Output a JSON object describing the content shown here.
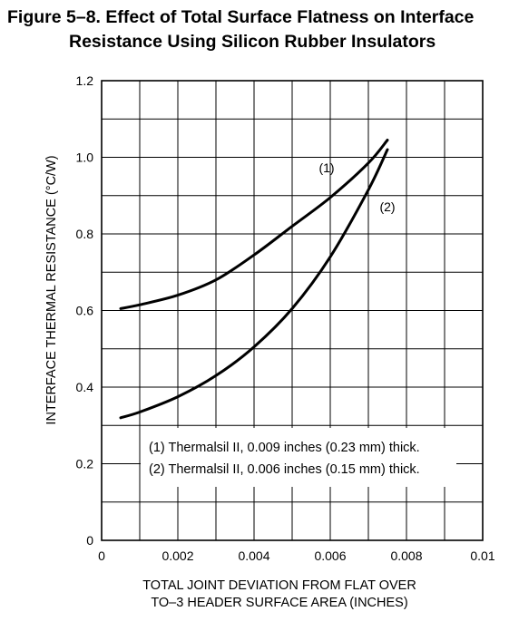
{
  "figure": {
    "title_line1": "Figure 5–8. Effect of Total Surface Flatness on Interface",
    "title_line2": "Resistance Using Silicon Rubber Insulators"
  },
  "chart_data": {
    "type": "line",
    "xlabel_line1": "TOTAL JOINT DEVIATION FROM FLAT OVER",
    "xlabel_line2": "TO–3 HEADER SURFACE AREA (INCHES)",
    "ylabel": "INTERFACE THERMAL RESISTANCE (°C/W)",
    "xlim": [
      0,
      0.01
    ],
    "ylim": [
      0,
      1.2
    ],
    "x_ticks": [
      0,
      0.002,
      0.004,
      0.006,
      0.008,
      0.01
    ],
    "x_tick_labels": [
      "0",
      "0.002",
      "0.004",
      "0.006",
      "0.008",
      "0.01"
    ],
    "y_ticks": [
      0,
      0.2,
      0.4,
      0.6,
      0.8,
      1.0,
      1.2
    ],
    "y_tick_labels": [
      "0",
      "0.2",
      "0.4",
      "0.6",
      "0.8",
      "1.0",
      "1.2"
    ],
    "grid": true,
    "series": [
      {
        "name": "(1)",
        "x": [
          0.0005,
          0.001,
          0.002,
          0.003,
          0.004,
          0.005,
          0.006,
          0.007,
          0.0075
        ],
        "y": [
          0.605,
          0.615,
          0.64,
          0.68,
          0.745,
          0.82,
          0.895,
          0.985,
          1.045
        ]
      },
      {
        "name": "(2)",
        "x": [
          0.0005,
          0.001,
          0.002,
          0.003,
          0.004,
          0.005,
          0.006,
          0.007,
          0.0075
        ],
        "y": [
          0.32,
          0.335,
          0.375,
          0.43,
          0.505,
          0.605,
          0.74,
          0.915,
          1.02
        ]
      }
    ],
    "legend": [
      "(1) Thermalsil II, 0.009 inches (0.23 mm) thick.",
      "(2) Thermalsil II, 0.006 inches (0.15 mm) thick."
    ]
  }
}
